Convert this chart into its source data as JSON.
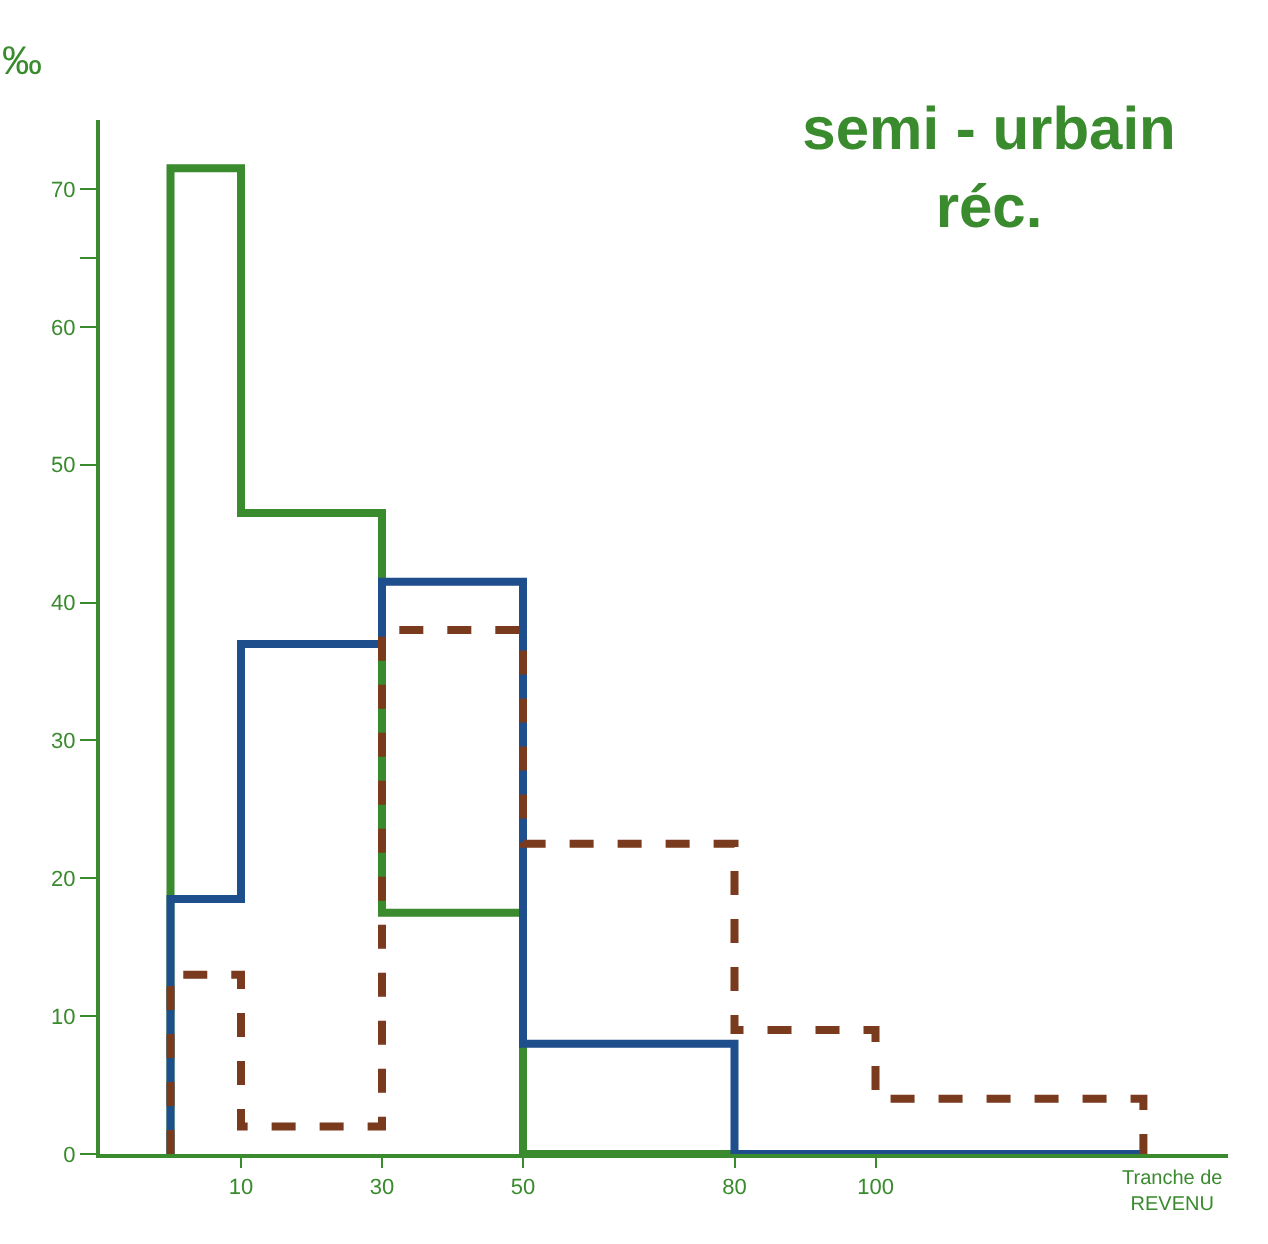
{
  "chart_data": {
    "type": "histogram",
    "title": "semi - urbain\nréc.",
    "ylabel": "‰",
    "xlabel": "Tranche de\nREVENU",
    "bins": [
      0,
      10,
      30,
      50,
      80,
      100,
      138
    ],
    "series": [
      {
        "color": "#3a8a2e",
        "values": [
          71.5,
          46.5,
          17.5,
          0,
          0,
          0
        ]
      },
      {
        "color": "#1f4e8c",
        "values": [
          18.5,
          37,
          41.5,
          8,
          0,
          0
        ]
      },
      {
        "color": "#7a3a1e",
        "values": [
          13,
          2,
          38,
          22.5,
          9,
          4
        ],
        "line_style": "dashed"
      }
    ],
    "xlim": [
      -10,
      150
    ],
    "xticks": [
      10,
      30,
      50,
      80,
      100
    ],
    "ylim": [
      0,
      75
    ],
    "yticks": [
      0,
      10,
      20,
      30,
      40,
      50,
      60,
      {
        "value": 65,
        "label": null
      },
      70
    ]
  }
}
